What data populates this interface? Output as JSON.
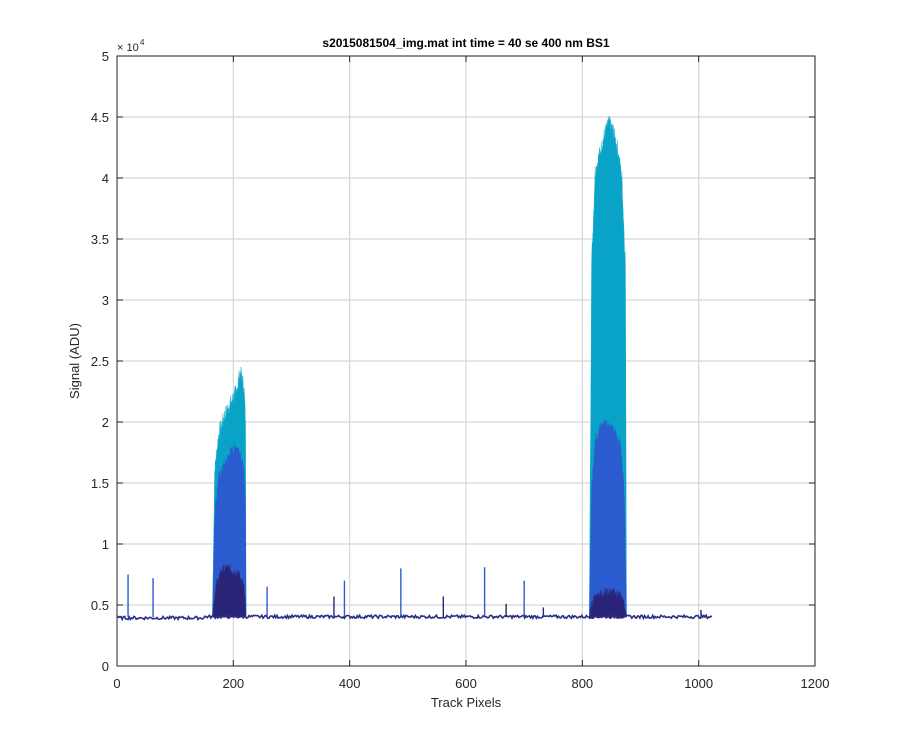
{
  "chart_data": {
    "type": "area",
    "title": "s2015081504_img.mat int time = 40 se  400 nm BS1",
    "xlabel": "Track Pixels",
    "ylabel": "Signal (ADU)",
    "xlim": [
      0,
      1200
    ],
    "ylim": [
      0,
      50000
    ],
    "x_ticks": [
      0,
      200,
      400,
      600,
      800,
      1000,
      1200
    ],
    "x_tick_labels": [
      "0",
      "200",
      "400",
      "600",
      "800",
      "1000",
      "1200"
    ],
    "y_ticks": [
      0,
      5000,
      10000,
      15000,
      20000,
      25000,
      30000,
      35000,
      40000,
      45000,
      50000
    ],
    "y_tick_labels": [
      "0",
      "0.5",
      "1",
      "1.5",
      "2",
      "2.5",
      "3",
      "3.5",
      "4",
      "4.5",
      "5"
    ],
    "y_exponent_label": "× 10",
    "y_exponent_power": "4",
    "grid": true,
    "baseline": 4000,
    "track_x_range": [
      1,
      1024
    ],
    "colors": {
      "light": "#0aa3c8",
      "medium": "#2b5ccf",
      "dark": "#2a2478",
      "baseline": "#2b2f86"
    },
    "series": [
      {
        "band": "light",
        "segments": [
          {
            "x": [
              164,
              168,
              175,
              185,
              195,
              205,
              212,
              218,
              221,
              222
            ],
            "y": [
              4000,
              16000,
              19000,
              20500,
              21500,
              22500,
              24000,
              23000,
              20000,
              4000
            ]
          },
          {
            "x": [
              812,
              816,
              822,
              830,
              838,
              845,
              852,
              860,
              868,
              874,
              876
            ],
            "y": [
              4000,
              33000,
              40500,
              42000,
              43500,
              44500,
              44000,
              42500,
              40000,
              33000,
              4000
            ]
          }
        ]
      },
      {
        "band": "medium",
        "segments": [
          {
            "x": [
              164,
              168,
              175,
              185,
              195,
              205,
              212,
              218,
              221,
              222
            ],
            "y": [
              4000,
              12500,
              15500,
              16500,
              17500,
              18000,
              17500,
              16000,
              13000,
              4000
            ]
          },
          {
            "x": [
              812,
              816,
              822,
              830,
              840,
              850,
              858,
              866,
              872,
              876
            ],
            "y": [
              4000,
              14500,
              18500,
              19500,
              20000,
              19500,
              19000,
              18000,
              14500,
              4000
            ]
          }
        ]
      },
      {
        "band": "dark",
        "segments": [
          {
            "x": [
              164,
              170,
              180,
              190,
              200,
              210,
              218,
              222
            ],
            "y": [
              4000,
              6500,
              7800,
              8000,
              7800,
              7500,
              6500,
              4000
            ]
          },
          {
            "x": [
              812,
              820,
              835,
              850,
              865,
              872,
              876
            ],
            "y": [
              4000,
              5500,
              6000,
              6000,
              5800,
              5000,
              4000
            ]
          }
        ]
      }
    ],
    "spikes": [
      {
        "x": 19,
        "y": 7500
      },
      {
        "x": 62,
        "y": 7200
      },
      {
        "x": 258,
        "y": 6500
      },
      {
        "x": 373,
        "y": 5700
      },
      {
        "x": 391,
        "y": 7000
      },
      {
        "x": 488,
        "y": 8000
      },
      {
        "x": 561,
        "y": 5700
      },
      {
        "x": 632,
        "y": 8100
      },
      {
        "x": 669,
        "y": 5100
      },
      {
        "x": 700,
        "y": 7000
      },
      {
        "x": 733,
        "y": 4800
      },
      {
        "x": 1004,
        "y": 4600
      }
    ]
  }
}
